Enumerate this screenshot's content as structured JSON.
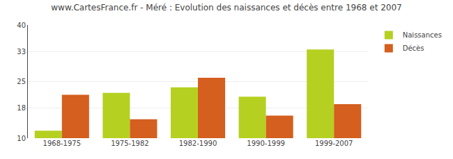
{
  "chart_data": {
    "type": "bar",
    "title": "www.CartesFrance.fr - Méré : Evolution des naissances et décès entre 1968 et 2007",
    "categories": [
      "1968-1975",
      "1975-1982",
      "1982-1990",
      "1990-1999",
      "1999-2007"
    ],
    "series": [
      {
        "name": "Naissances",
        "color": "#b5d020",
        "values": [
          12,
          22,
          23.5,
          21,
          33.5
        ]
      },
      {
        "name": "Décès",
        "color": "#d45f1e",
        "values": [
          21.5,
          15,
          26,
          16,
          19
        ]
      }
    ],
    "ylim": [
      10,
      40
    ],
    "yticks": [
      10,
      18,
      25,
      33,
      40
    ],
    "grid": true,
    "legend": "upper right"
  }
}
